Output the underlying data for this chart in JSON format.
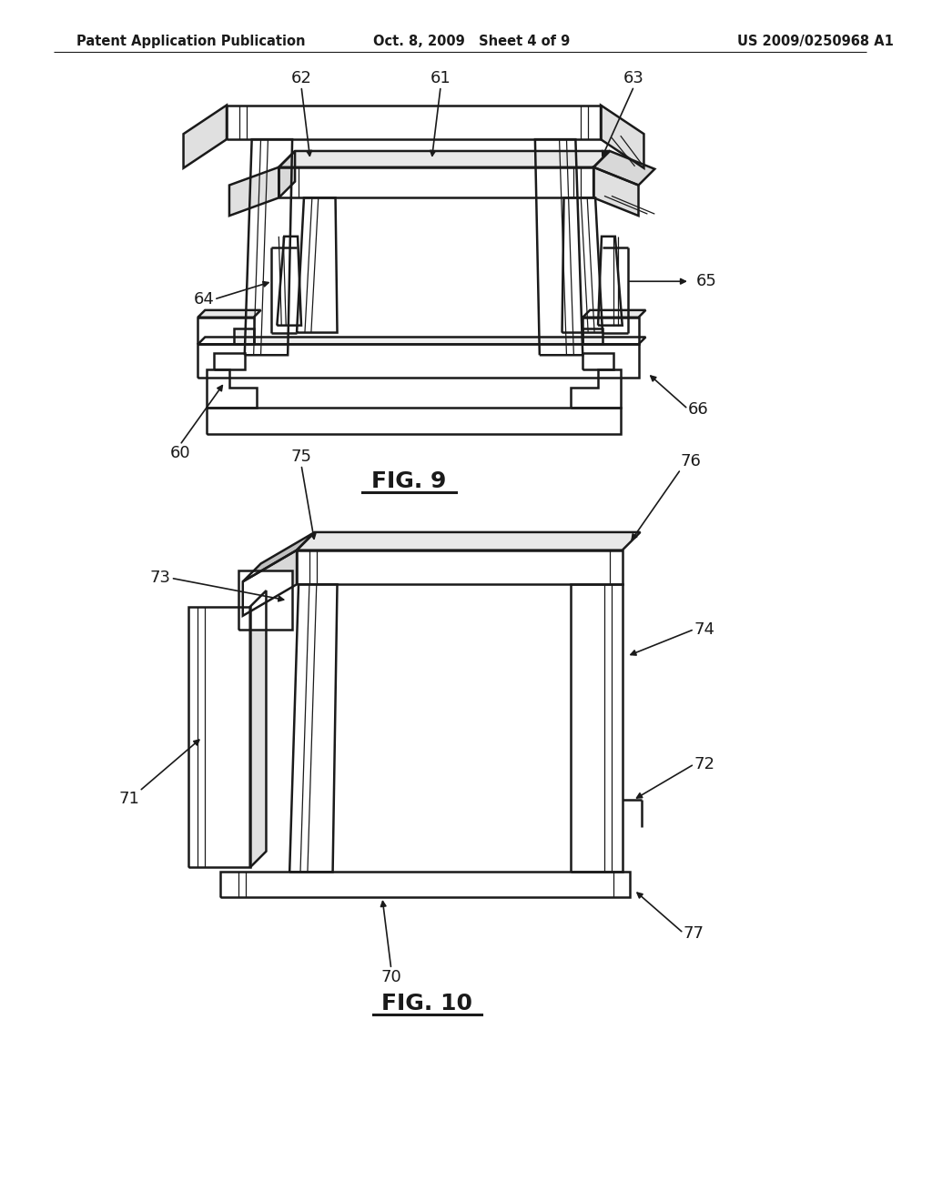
{
  "background_color": "#ffffff",
  "header_left": "Patent Application Publication",
  "header_center": "Oct. 8, 2009   Sheet 4 of 9",
  "header_right": "US 2009/0250968 A1",
  "fig9_label": "FIG. 9",
  "fig10_label": "FIG. 10",
  "line_color": "#1a1a1a",
  "line_width": 1.8,
  "thin_line": 0.9,
  "label_fontsize": 13
}
